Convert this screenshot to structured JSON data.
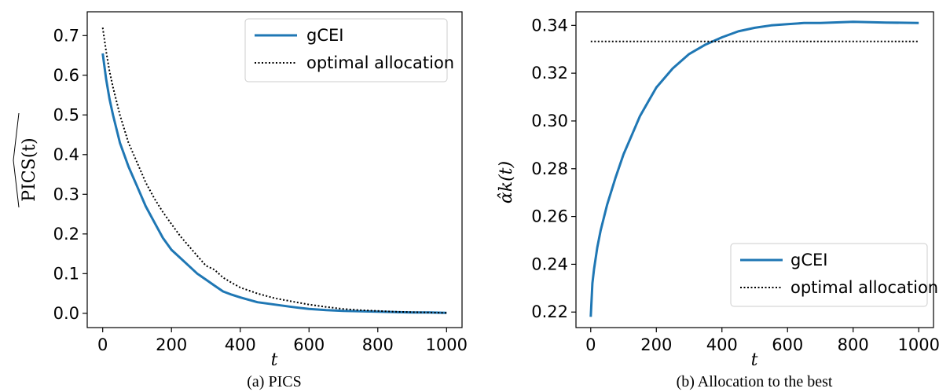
{
  "figure": {
    "caption_a": "(a) PICS",
    "caption_b": "(b) Allocation to the best"
  },
  "colors": {
    "gcei": "#1f77b4",
    "optimal": "#000000"
  },
  "chart_data": [
    {
      "type": "line",
      "xlabel": "t",
      "ylabel": "PICS(t)",
      "xlim": [
        -45,
        1045
      ],
      "ylim": [
        -0.036,
        0.76
      ],
      "xticks": [
        0,
        200,
        400,
        600,
        800,
        1000
      ],
      "yticks": [
        0.0,
        0.1,
        0.2,
        0.3,
        0.4,
        0.5,
        0.6,
        0.7
      ],
      "ytick_labels": [
        "0.0",
        "0.1",
        "0.2",
        "0.3",
        "0.4",
        "0.5",
        "0.6",
        "0.7"
      ],
      "legend_position": "upper right",
      "grid": false,
      "series": [
        {
          "name": "gCEI",
          "style": "solid",
          "x": [
            0,
            10,
            20,
            30,
            50,
            75,
            100,
            125,
            150,
            175,
            200,
            225,
            250,
            275,
            300,
            325,
            350,
            375,
            400,
            450,
            500,
            550,
            600,
            650,
            700,
            750,
            800,
            850,
            900,
            950,
            1000
          ],
          "y": [
            0.655,
            0.59,
            0.54,
            0.5,
            0.43,
            0.37,
            0.32,
            0.27,
            0.23,
            0.19,
            0.16,
            0.14,
            0.12,
            0.1,
            0.085,
            0.07,
            0.055,
            0.047,
            0.04,
            0.028,
            0.022,
            0.016,
            0.011,
            0.008,
            0.006,
            0.005,
            0.004,
            0.003,
            0.002,
            0.002,
            0.001
          ]
        },
        {
          "name": "optimal allocation",
          "style": "dotted",
          "x": [
            0,
            10,
            20,
            30,
            50,
            75,
            100,
            125,
            150,
            175,
            200,
            225,
            250,
            275,
            300,
            325,
            350,
            375,
            400,
            450,
            500,
            550,
            600,
            650,
            700,
            750,
            800,
            850,
            900,
            950,
            1000
          ],
          "y": [
            0.72,
            0.66,
            0.61,
            0.57,
            0.5,
            0.43,
            0.38,
            0.33,
            0.29,
            0.255,
            0.225,
            0.195,
            0.17,
            0.145,
            0.12,
            0.11,
            0.09,
            0.077,
            0.065,
            0.05,
            0.038,
            0.03,
            0.022,
            0.016,
            0.011,
            0.008,
            0.006,
            0.004,
            0.003,
            0.002,
            0.001
          ]
        }
      ]
    },
    {
      "type": "line",
      "xlabel": "t",
      "ylabel": "α̂k(t)",
      "xlim": [
        -45,
        1045
      ],
      "ylim": [
        0.2135,
        0.3457
      ],
      "xticks": [
        0,
        200,
        400,
        600,
        800,
        1000
      ],
      "yticks": [
        0.22,
        0.24,
        0.26,
        0.28,
        0.3,
        0.32,
        0.34
      ],
      "ytick_labels": [
        "0.22",
        "0.24",
        "0.26",
        "0.28",
        "0.30",
        "0.32",
        "0.34"
      ],
      "legend_position": "lower right",
      "grid": false,
      "series": [
        {
          "name": "gCEI",
          "style": "solid",
          "x": [
            0,
            5,
            10,
            20,
            30,
            50,
            75,
            100,
            125,
            150,
            175,
            200,
            250,
            300,
            350,
            400,
            450,
            500,
            550,
            600,
            650,
            700,
            800,
            900,
            1000
          ],
          "y": [
            0.218,
            0.232,
            0.238,
            0.247,
            0.254,
            0.265,
            0.276,
            0.286,
            0.294,
            0.302,
            0.308,
            0.314,
            0.322,
            0.328,
            0.332,
            0.335,
            0.3375,
            0.339,
            0.34,
            0.3405,
            0.341,
            0.341,
            0.3415,
            0.3412,
            0.341
          ]
        },
        {
          "name": "optimal allocation",
          "style": "dotted",
          "x": [
            0,
            1000
          ],
          "y": [
            0.3333,
            0.3333
          ]
        }
      ]
    }
  ]
}
